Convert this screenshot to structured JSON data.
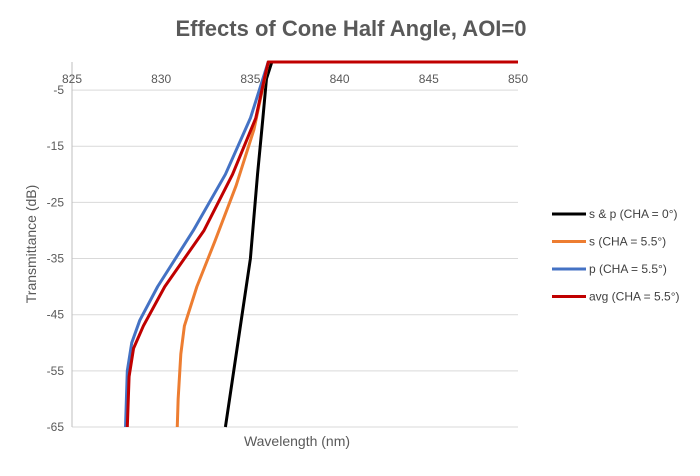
{
  "chart_data": {
    "type": "line",
    "title": "Effects of Cone Half Angle, AOI=0",
    "xlabel": "Wavelength (nm)",
    "ylabel": "Transmittance (dB)",
    "xlim": [
      825,
      850
    ],
    "ylim": [
      -65,
      0
    ],
    "xticks": [
      825,
      830,
      835,
      840,
      845,
      850
    ],
    "yticks": [
      -5,
      -15,
      -25,
      -35,
      -45,
      -55,
      -65
    ],
    "grid": "horizontal",
    "legend_position": "right",
    "series": [
      {
        "name": "s & p (CHA = 0°)",
        "color": "#000000",
        "x": [
          833.6,
          834.3,
          835.0,
          835.4,
          835.7,
          835.9,
          836.2,
          850
        ],
        "y": [
          -65,
          -50,
          -35,
          -20,
          -10,
          -3,
          0,
          0
        ]
      },
      {
        "name": "s (CHA = 5.5°)",
        "color": "#ED7D31",
        "x": [
          830.9,
          830.95,
          831.1,
          831.3,
          832.0,
          833.0,
          834.2,
          835.2,
          835.8,
          836.0,
          850
        ],
        "y": [
          -65,
          -60,
          -52,
          -47,
          -40,
          -32,
          -22,
          -12,
          -3,
          0,
          0
        ]
      },
      {
        "name": "p (CHA = 5.5°)",
        "color": "#4472C4",
        "x": [
          828.0,
          828.1,
          828.35,
          828.8,
          829.8,
          831.8,
          833.6,
          835.0,
          835.8,
          836.0,
          850
        ],
        "y": [
          -65,
          -55,
          -50,
          -46,
          -40,
          -30,
          -20,
          -10,
          -2,
          0,
          0
        ]
      },
      {
        "name": "avg (CHA = 5.5°)",
        "color": "#C00000",
        "x": [
          828.1,
          828.2,
          828.45,
          829.0,
          830.2,
          832.4,
          834.0,
          835.3,
          835.85,
          836.0,
          850
        ],
        "y": [
          -65,
          -56,
          -51,
          -47,
          -40,
          -30,
          -20,
          -10,
          -2,
          0,
          0
        ]
      }
    ]
  }
}
